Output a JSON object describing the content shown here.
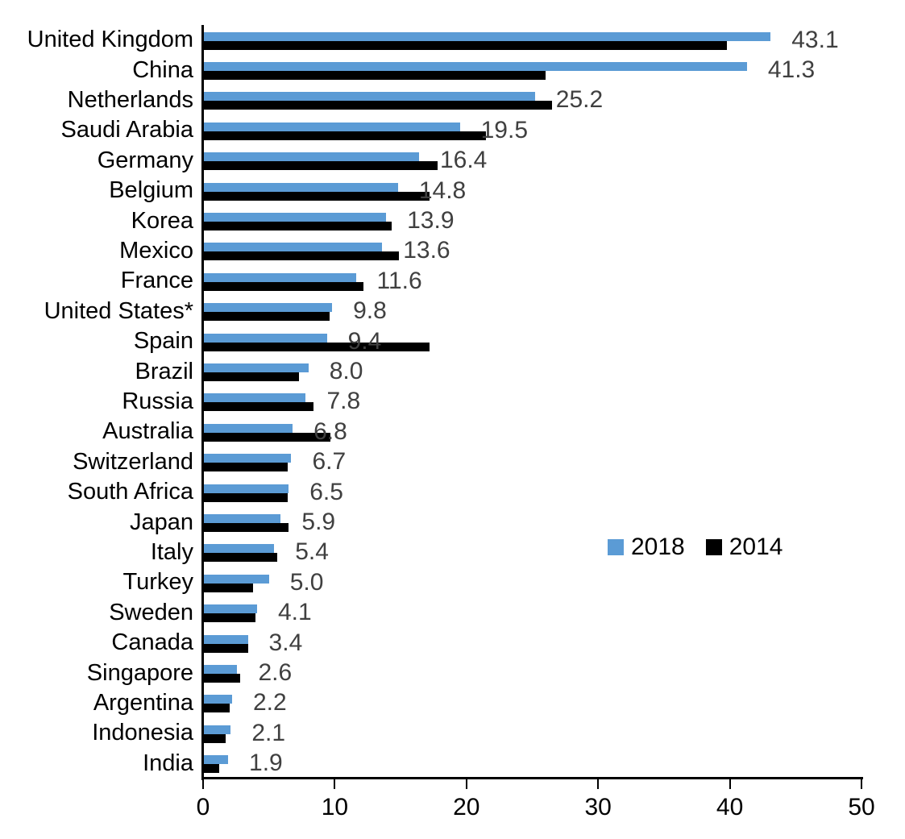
{
  "chart_data": {
    "type": "bar",
    "orientation": "horizontal",
    "title": "",
    "categories": [
      "United Kingdom",
      "China",
      "Netherlands",
      "Saudi Arabia",
      "Germany",
      "Belgium",
      "Korea",
      "Mexico",
      "France",
      "United States*",
      "Spain",
      "Brazil",
      "Russia",
      "Australia",
      "Switzerland",
      "South Africa",
      "Japan",
      "Italy",
      "Turkey",
      "Sweden",
      "Canada",
      "Singapore",
      "Argentina",
      "Indonesia",
      "India"
    ],
    "series": [
      {
        "name": "2018",
        "color": "#5B9BD5",
        "values": [
          43.1,
          41.3,
          25.2,
          19.5,
          16.4,
          14.8,
          13.9,
          13.6,
          11.6,
          9.8,
          9.4,
          8.0,
          7.8,
          6.8,
          6.7,
          6.5,
          5.9,
          5.4,
          5.0,
          4.1,
          3.4,
          2.6,
          2.2,
          2.1,
          1.9
        ]
      },
      {
        "name": "2014",
        "color": "#000000",
        "values": [
          39.8,
          26.0,
          26.5,
          21.5,
          17.8,
          17.2,
          14.3,
          14.9,
          12.2,
          9.6,
          17.2,
          7.3,
          8.4,
          9.7,
          6.4,
          6.4,
          6.5,
          5.6,
          3.8,
          4.0,
          3.4,
          2.8,
          2.0,
          1.7,
          1.2
        ]
      }
    ],
    "data_labels": [
      "43.1",
      "41.3",
      "25.2",
      "19.5",
      "16.4",
      "14.8",
      "13.9",
      "13.6",
      "11.6",
      "9.8",
      "9.4",
      "8.0",
      "7.8",
      "6.8",
      "6.7",
      "6.5",
      "5.9",
      "5.4",
      "5.0",
      "4.1",
      "3.4",
      "2.6",
      "2.2",
      "2.1",
      "1.9"
    ],
    "data_labels_series": "2018",
    "xlim": [
      0,
      50
    ],
    "x_ticks": [
      0,
      10,
      20,
      30,
      40,
      50
    ],
    "x_tick_labels": [
      "0",
      "10",
      "20",
      "30",
      "40",
      "50"
    ],
    "grid": false,
    "legend": {
      "position": "middle-right",
      "items": [
        "2018",
        "2014"
      ]
    }
  },
  "colors": {
    "bar_2018": "#5B9BD5",
    "bar_2014": "#000000",
    "value_label": "#404040",
    "axis": "#000000",
    "text": "#000000"
  }
}
